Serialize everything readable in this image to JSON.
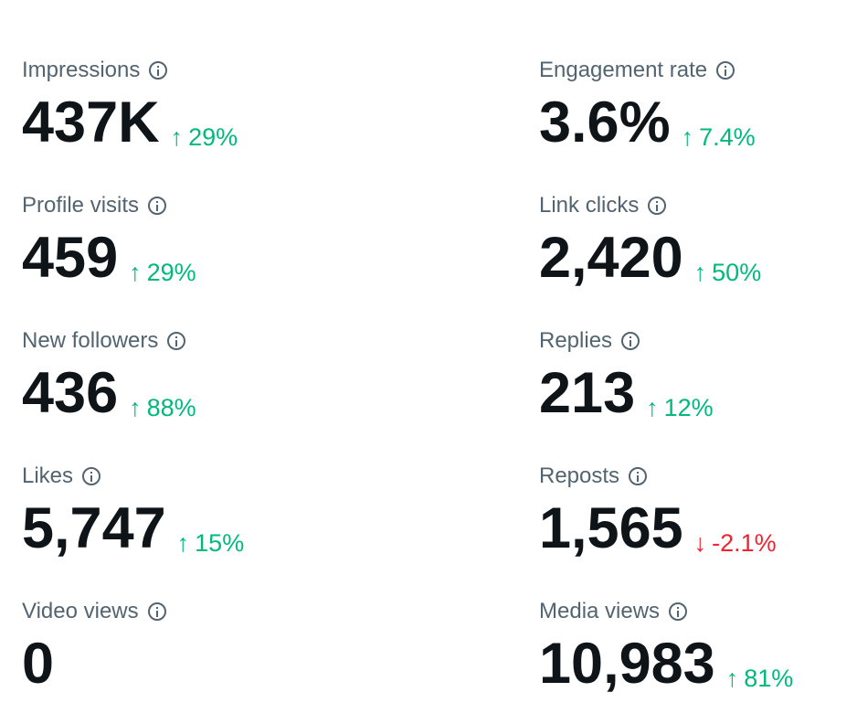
{
  "metrics": [
    {
      "label": "Impressions",
      "value": "437K",
      "change": "29%",
      "direction": "up"
    },
    {
      "label": "Engagement rate",
      "value": "3.6%",
      "change": "7.4%",
      "direction": "up"
    },
    {
      "label": "Profile visits",
      "value": "459",
      "change": "29%",
      "direction": "up"
    },
    {
      "label": "Link clicks",
      "value": "2,420",
      "change": "50%",
      "direction": "up"
    },
    {
      "label": "New followers",
      "value": "436",
      "change": "88%",
      "direction": "up"
    },
    {
      "label": "Replies",
      "value": "213",
      "change": "12%",
      "direction": "up"
    },
    {
      "label": "Likes",
      "value": "5,747",
      "change": "15%",
      "direction": "up"
    },
    {
      "label": "Reposts",
      "value": "1,565",
      "change": "-2.1%",
      "direction": "down"
    },
    {
      "label": "Video views",
      "value": "0",
      "change": null,
      "direction": null
    },
    {
      "label": "Media views",
      "value": "10,983",
      "change": "81%",
      "direction": "up"
    }
  ],
  "colors": {
    "up": "#00ba7c",
    "down": "#f4212e",
    "label": "#536471",
    "value": "#0f1419"
  },
  "icons": {
    "info": "info-circle-icon",
    "up": "arrow-up-icon",
    "down": "arrow-down-icon"
  }
}
